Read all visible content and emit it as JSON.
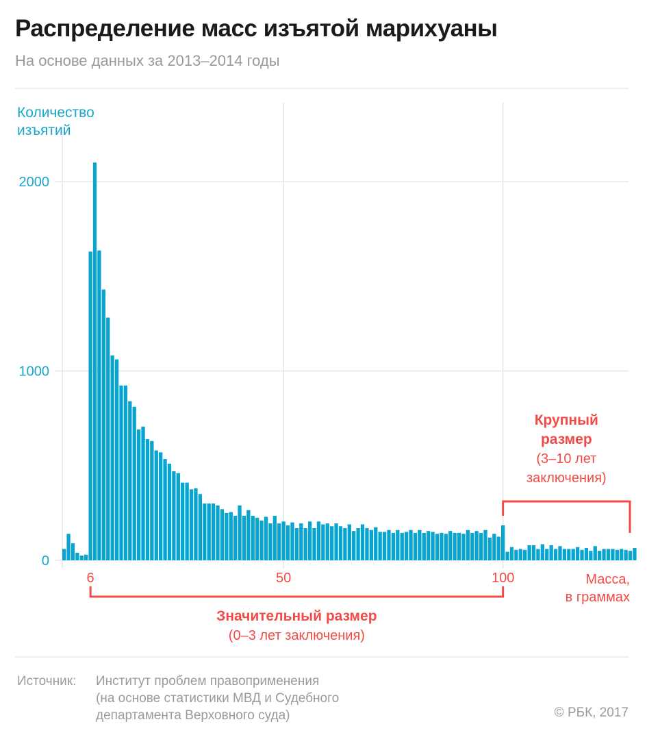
{
  "header": {
    "title": "Распределение масс изъятой марихуаны",
    "subtitle": "На основе данных за 2013–2014 годы"
  },
  "colors": {
    "bar": "#0aa5cf",
    "accent": "#f24b47",
    "axis_text": "#1aa5cc",
    "grid": "#e6e6e6"
  },
  "chart_data": {
    "type": "bar",
    "title": "Распределение масс изъятой марихуаны",
    "ylabel_lines": [
      "Количество",
      "изъятий"
    ],
    "xlabel_lines": [
      "Масса,",
      "в граммах"
    ],
    "ylim": [
      0,
      2200
    ],
    "xlim": [
      0,
      130
    ],
    "yticks": [
      {
        "value": 0,
        "label": "0"
      },
      {
        "value": 1000,
        "label": "1000"
      },
      {
        "value": 2000,
        "label": "2000"
      }
    ],
    "xticks": [
      {
        "value": 6,
        "label": "6"
      },
      {
        "value": 50,
        "label": "50"
      },
      {
        "value": 100,
        "label": "100"
      }
    ],
    "grid": true,
    "x_start": 0,
    "values": [
      60,
      140,
      90,
      40,
      25,
      30,
      1630,
      2100,
      1636,
      1430,
      1282,
      1082,
      1061,
      923,
      923,
      840,
      811,
      691,
      706,
      640,
      630,
      580,
      570,
      535,
      510,
      470,
      460,
      410,
      410,
      375,
      380,
      350,
      300,
      300,
      300,
      290,
      270,
      250,
      255,
      235,
      290,
      235,
      265,
      235,
      225,
      210,
      230,
      195,
      235,
      195,
      205,
      185,
      200,
      170,
      195,
      170,
      205,
      170,
      205,
      190,
      195,
      180,
      195,
      180,
      170,
      190,
      155,
      170,
      190,
      170,
      160,
      175,
      150,
      150,
      160,
      145,
      160,
      145,
      150,
      160,
      145,
      160,
      145,
      155,
      150,
      140,
      145,
      140,
      155,
      145,
      145,
      140,
      160,
      145,
      155,
      145,
      160,
      120,
      140,
      125,
      185,
      45,
      70,
      55,
      60,
      55,
      80,
      80,
      60,
      85,
      60,
      80,
      60,
      75,
      60,
      60,
      60,
      70,
      55,
      65,
      50,
      75,
      50,
      60,
      60,
      60,
      55,
      60,
      55,
      50,
      65
    ]
  },
  "annotations": {
    "significant": {
      "title": "Значительный размер",
      "subtitle": "(0–3 лет заключения)",
      "from": 6,
      "to": 100
    },
    "large": {
      "title_lines": [
        "Крупный",
        "размер"
      ],
      "subtitle_lines": [
        "(3–10 лет",
        "заключения)"
      ],
      "from": 100,
      "to": 130
    }
  },
  "footer": {
    "source_label": "Источник:",
    "source_lines": [
      "Институт проблем правоприменения",
      "(на основе статистики МВД и Судебного",
      "департамента Верховного суда)"
    ],
    "copyright": "© РБК, 2017"
  }
}
